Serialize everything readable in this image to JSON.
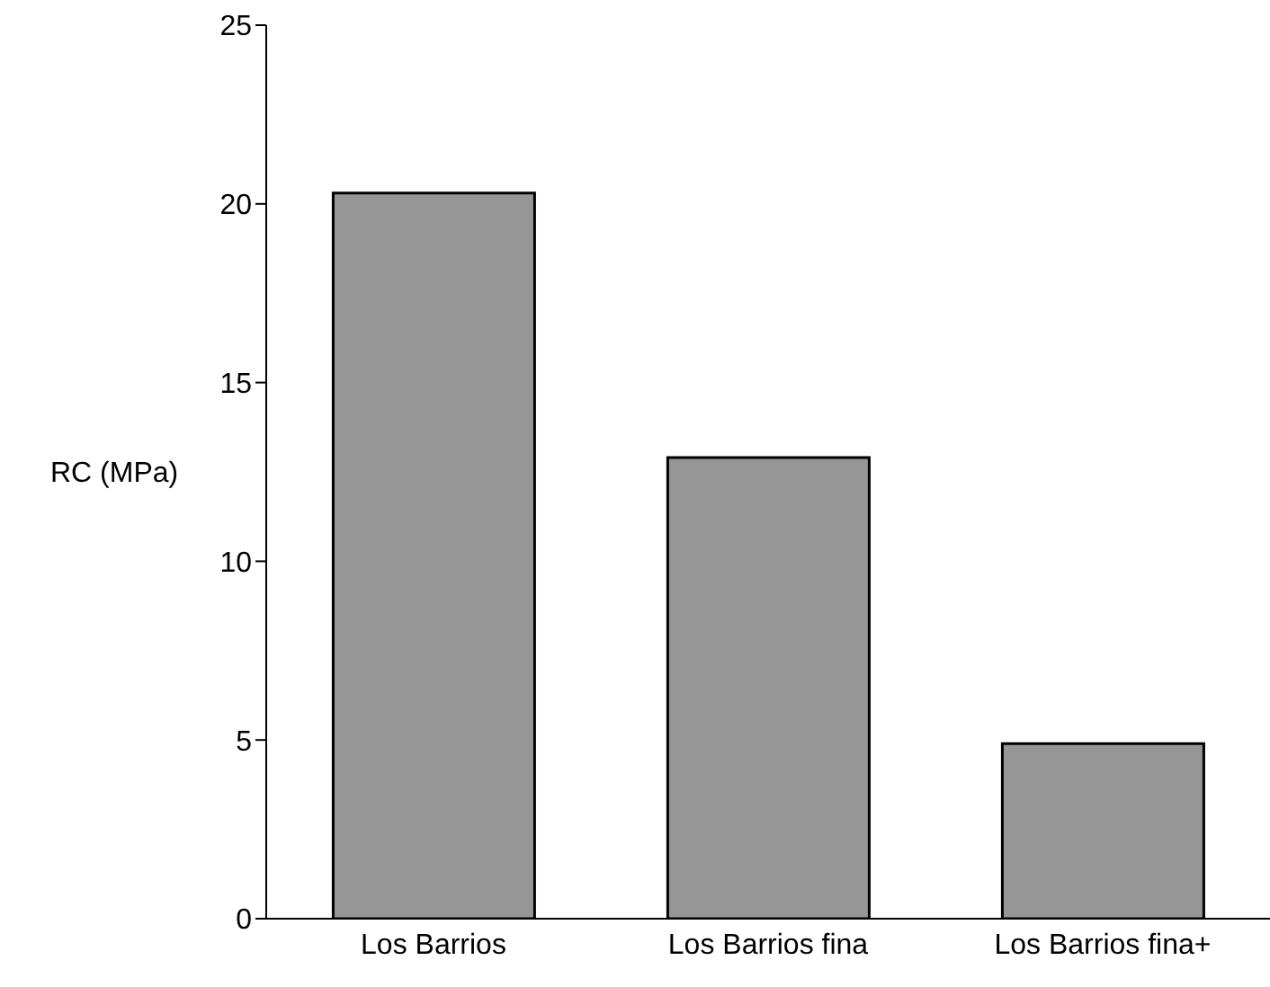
{
  "chart_data": {
    "type": "bar",
    "ylabel": "RC (MPa)",
    "categories": [
      "Los Barrios",
      "Los Barrios fina",
      "Los Barrios fina+"
    ],
    "values": [
      20.3,
      12.9,
      4.9
    ],
    "color": "#969696",
    "ylim": [
      0,
      25
    ],
    "yticks": [
      0,
      5,
      10,
      15,
      20,
      25
    ],
    "grid": false,
    "legend": false
  }
}
